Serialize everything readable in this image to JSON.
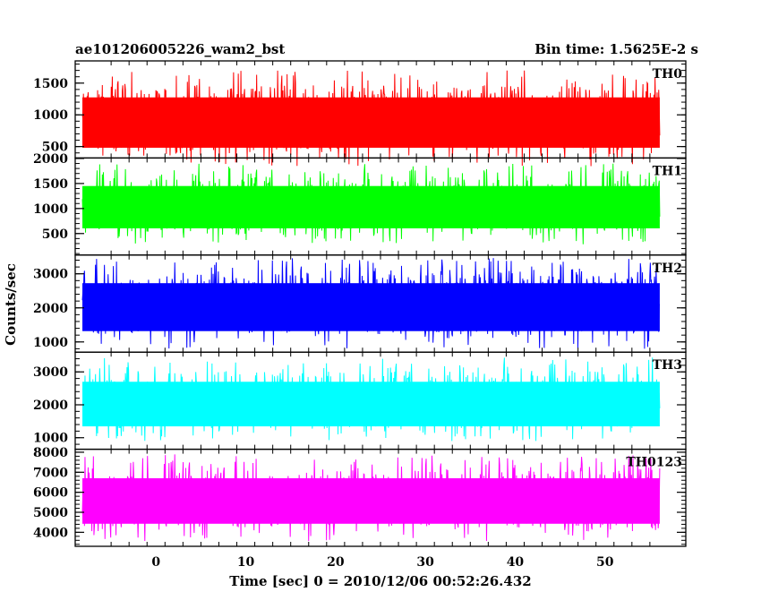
{
  "header": {
    "obs_id": "ae101206005226_wam2_bst",
    "bin_time": "Bin time: 1.5625E-2 s"
  },
  "axes": {
    "ylabel": "Counts/sec",
    "xlabel": "Time [sec] 0 = 2010/12/06 00:52:26.432"
  },
  "chart_data": {
    "type": "line",
    "x_range": [
      -8.2,
      56.1
    ],
    "xlim": [
      -9,
      59
    ],
    "x_ticks": [
      0,
      10,
      20,
      30,
      40,
      50
    ],
    "series": [
      {
        "name": "TH0",
        "color": "#ff0000",
        "baseline": 850,
        "low": 180,
        "high": 1700,
        "ylim": [
          320,
          1850
        ],
        "yticks": [
          500,
          1000,
          1500
        ]
      },
      {
        "name": "TH1",
        "color": "#00ff00",
        "baseline": 1000,
        "low": 280,
        "high": 1900,
        "ylim": [
          70,
          2010
        ],
        "yticks": [
          500,
          1000,
          1500,
          2000
        ]
      },
      {
        "name": "TH2",
        "color": "#0000ff",
        "baseline": 1950,
        "low": 800,
        "high": 3500,
        "ylim": [
          700,
          3550
        ],
        "yticks": [
          1000,
          2000,
          3000
        ]
      },
      {
        "name": "TH3",
        "color": "#00ffff",
        "baseline": 1950,
        "low": 850,
        "high": 3450,
        "ylim": [
          650,
          3600
        ],
        "yticks": [
          1000,
          2000,
          3000
        ]
      },
      {
        "name": "TH0123",
        "color": "#ff00ff",
        "baseline": 5500,
        "low": 3550,
        "high": 7900,
        "ylim": [
          3300,
          8150
        ],
        "yticks": [
          4000,
          5000,
          6000,
          7000,
          8000
        ]
      }
    ]
  }
}
